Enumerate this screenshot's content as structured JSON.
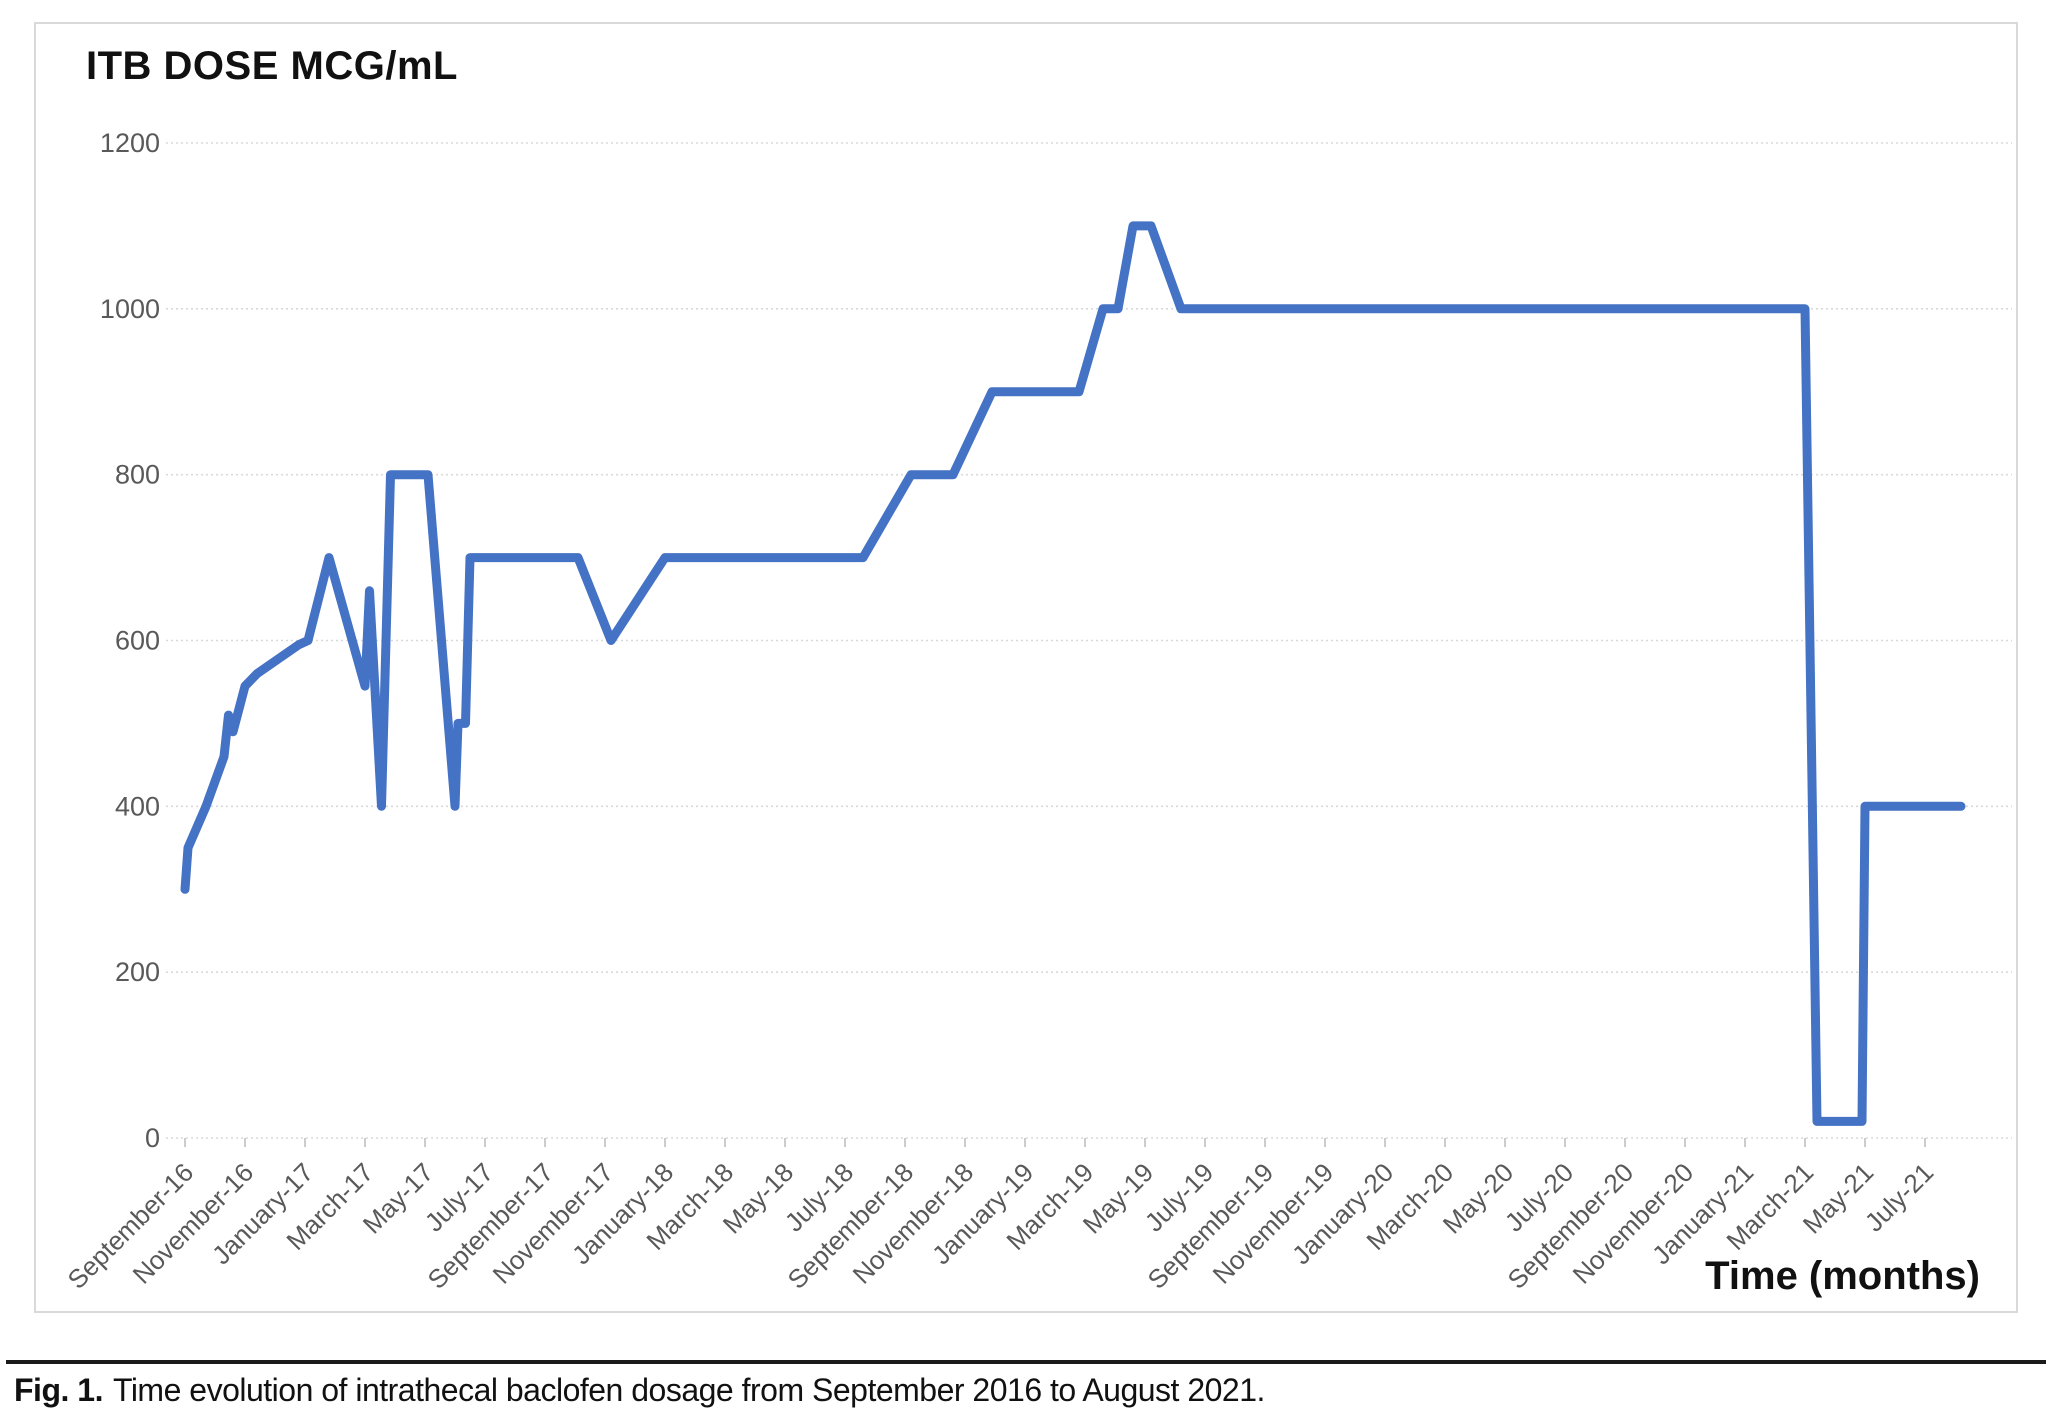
{
  "chart": {
    "title": "ITB DOSE MCG/mL",
    "x_axis_title": "Time (months)"
  },
  "caption": {
    "label": "Fig. 1.",
    "text": "Time evolution of intrathecal baclofen dosage from September 2016 to August 2021."
  },
  "colors": {
    "line": "#4472C4",
    "grid": "#d9d9d9",
    "axis_text": "#595959",
    "tick": "#bfbfbf",
    "frame": "#d9d9d9",
    "caption_rule": "#1b1b1b"
  },
  "chart_data": {
    "type": "line",
    "title": "ITB DOSE MCG/mL",
    "xlabel": "Time (months)",
    "ylabel": "ITB DOSE MCG/mL",
    "x_unit": "month index, 0 = September 2016, line ends ~August 2021",
    "grid": "horizontal dotted gridlines",
    "legend": "none",
    "ylim": [
      0,
      1200
    ],
    "y_ticks": [
      0,
      200,
      400,
      600,
      800,
      1000,
      1200
    ],
    "x_tick_positions": [
      0,
      2,
      4,
      6,
      8,
      10,
      12,
      14,
      16,
      18,
      20,
      22,
      24,
      26,
      28,
      30,
      32,
      34,
      36,
      38,
      40,
      42,
      44,
      46,
      48,
      50,
      52,
      54,
      56,
      58
    ],
    "x_tick_labels": [
      "September-16",
      "November-16",
      "January-17",
      "March-17",
      "May-17",
      "July-17",
      "September-17",
      "November-17",
      "January-18",
      "March-18",
      "May-18",
      "July-18",
      "September-18",
      "November-18",
      "January-19",
      "March-19",
      "May-19",
      "July-19",
      "September-19",
      "November-19",
      "January-20",
      "March-20",
      "May-20",
      "July-20",
      "September-20",
      "November-20",
      "January-21",
      "March-21",
      "May-21",
      "July-21"
    ],
    "series": [
      {
        "name": "ITB dose (mcg/mL)",
        "color": "#4472C4",
        "points": [
          [
            0,
            300
          ],
          [
            0.1,
            350
          ],
          [
            0.7,
            400
          ],
          [
            1.3,
            460
          ],
          [
            1.45,
            510
          ],
          [
            1.6,
            490
          ],
          [
            2,
            545
          ],
          [
            2.4,
            560
          ],
          [
            3.8,
            595
          ],
          [
            4.1,
            600
          ],
          [
            4.8,
            700
          ],
          [
            6,
            545
          ],
          [
            6.15,
            660
          ],
          [
            6.55,
            400
          ],
          [
            6.85,
            800
          ],
          [
            8.1,
            800
          ],
          [
            9,
            400
          ],
          [
            9.1,
            500
          ],
          [
            9.35,
            500
          ],
          [
            9.5,
            700
          ],
          [
            13.1,
            700
          ],
          [
            14.2,
            600
          ],
          [
            16,
            700
          ],
          [
            22.6,
            700
          ],
          [
            24.2,
            800
          ],
          [
            25.6,
            800
          ],
          [
            26.9,
            900
          ],
          [
            29.8,
            900
          ],
          [
            30.6,
            1000
          ],
          [
            31.1,
            1000
          ],
          [
            31.6,
            1100
          ],
          [
            32.2,
            1100
          ],
          [
            33.2,
            1000
          ],
          [
            54,
            1000
          ],
          [
            54.4,
            20
          ],
          [
            55.9,
            20
          ],
          [
            56,
            400
          ],
          [
            59.2,
            400
          ]
        ]
      }
    ]
  }
}
